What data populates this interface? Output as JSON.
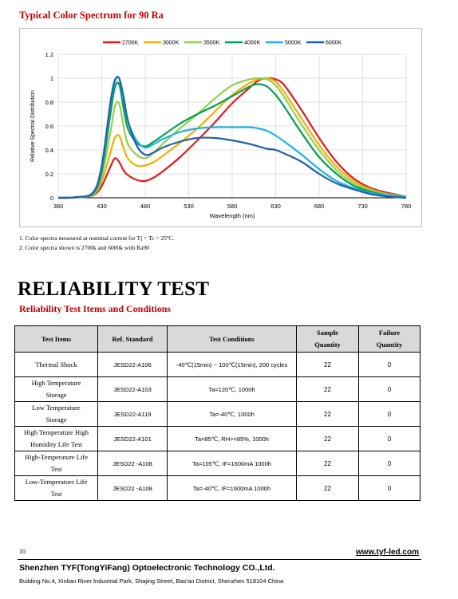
{
  "spectrum_title": "Typical Color Spectrum for 90 Ra",
  "chart_data": {
    "type": "line",
    "xlabel": "Wavelength (nm)",
    "ylabel": "Relative Spectral Distribution",
    "xlim": [
      380,
      780
    ],
    "ylim": [
      0,
      1.2
    ],
    "x_ticks": [
      380,
      430,
      480,
      530,
      580,
      630,
      680,
      730,
      780
    ],
    "y_ticks": [
      0,
      0.2,
      0.4,
      0.6,
      0.8,
      1,
      1.2
    ],
    "y_tick_labels": [
      "0",
      "0.2",
      "0.4",
      "0.6",
      "0.8",
      "1",
      "1.2"
    ],
    "grid": true,
    "legend_position": "top",
    "x": [
      380,
      400,
      420,
      430,
      440,
      445,
      450,
      455,
      460,
      470,
      480,
      490,
      500,
      520,
      540,
      560,
      580,
      600,
      610,
      620,
      630,
      640,
      660,
      680,
      700,
      720,
      740,
      760,
      780
    ],
    "series": [
      {
        "name": "2700K",
        "color": "#e31a1c",
        "values": [
          0,
          0.002,
          0.02,
          0.1,
          0.26,
          0.33,
          0.3,
          0.23,
          0.19,
          0.15,
          0.14,
          0.17,
          0.22,
          0.34,
          0.48,
          0.63,
          0.79,
          0.92,
          0.98,
          1.0,
          0.99,
          0.94,
          0.73,
          0.5,
          0.3,
          0.16,
          0.08,
          0.04,
          0.01
        ]
      },
      {
        "name": "3000K",
        "color": "#f0b000",
        "values": [
          0,
          0.002,
          0.025,
          0.14,
          0.38,
          0.5,
          0.52,
          0.42,
          0.33,
          0.27,
          0.27,
          0.3,
          0.35,
          0.46,
          0.58,
          0.72,
          0.86,
          0.96,
          0.99,
          1.0,
          0.97,
          0.88,
          0.66,
          0.44,
          0.26,
          0.14,
          0.07,
          0.03,
          0.01
        ]
      },
      {
        "name": "3500K",
        "color": "#92d050",
        "values": [
          0,
          0.003,
          0.03,
          0.18,
          0.55,
          0.76,
          0.79,
          0.6,
          0.45,
          0.36,
          0.33,
          0.38,
          0.45,
          0.58,
          0.7,
          0.83,
          0.94,
          0.99,
          1.0,
          0.99,
          0.94,
          0.84,
          0.61,
          0.4,
          0.23,
          0.12,
          0.06,
          0.03,
          0.01
        ]
      },
      {
        "name": "4000K",
        "color": "#00a050",
        "values": [
          0,
          0.004,
          0.035,
          0.22,
          0.7,
          0.92,
          0.95,
          0.75,
          0.58,
          0.46,
          0.43,
          0.47,
          0.52,
          0.62,
          0.7,
          0.77,
          0.85,
          0.93,
          0.95,
          0.93,
          0.86,
          0.76,
          0.54,
          0.34,
          0.2,
          0.1,
          0.05,
          0.02,
          0.01
        ]
      },
      {
        "name": "5000K",
        "color": "#1ab2e8",
        "values": [
          0,
          0.005,
          0.04,
          0.25,
          0.78,
          0.97,
          1.0,
          0.82,
          0.64,
          0.48,
          0.42,
          0.45,
          0.49,
          0.55,
          0.58,
          0.59,
          0.59,
          0.59,
          0.58,
          0.56,
          0.52,
          0.47,
          0.36,
          0.24,
          0.14,
          0.08,
          0.04,
          0.02,
          0.01
        ]
      },
      {
        "name": "6000K",
        "color": "#2160a8",
        "values": [
          0,
          0.005,
          0.045,
          0.27,
          0.8,
          0.98,
          1.0,
          0.85,
          0.65,
          0.44,
          0.36,
          0.38,
          0.42,
          0.47,
          0.5,
          0.5,
          0.48,
          0.45,
          0.43,
          0.41,
          0.4,
          0.37,
          0.3,
          0.2,
          0.12,
          0.07,
          0.03,
          0.01,
          0.0
        ]
      }
    ]
  },
  "notes": [
    "1.   Color spectra measured at nominal current for Tj = Tc = 25ºC.",
    "2.   Color spectra shown is 2700k and 6000k with Ra90"
  ],
  "reliability": {
    "title": "RELIABILITY TEST",
    "subtitle": "Reliability Test Items and Conditions",
    "headers": {
      "items": "Test Items",
      "standard": "Ref. Standard",
      "conditions": "Test Conditions",
      "sample_line1": "Sample",
      "sample_line2": "Quantity",
      "failure_line1": "Failure",
      "failure_line2": "Quantity"
    },
    "rows": [
      {
        "item1": "Thermal Shock",
        "item2": "",
        "standard": "JESD22-A106",
        "conditions": "-40℃(15min) ~ 100℃(15min), 200 cycles",
        "sample": "22",
        "failure": "0"
      },
      {
        "item1": "High Temperature",
        "item2": "Storage",
        "standard": "JESD22-A103",
        "conditions": "Ta=120℃, 1000h",
        "sample": "22",
        "failure": "0"
      },
      {
        "item1": "Low Temperature",
        "item2": "Storage",
        "standard": "JESD22-A119",
        "conditions": "Ta=-40℃, 1000h",
        "sample": "22",
        "failure": "0"
      },
      {
        "item1": "High Temperature High",
        "item2": "Humidity Life Test",
        "standard": "JESD22-A101",
        "conditions": "Ta=85℃, RH>=85%, 1000h",
        "sample": "22",
        "failure": "0"
      },
      {
        "item1": "High-Temperature Life",
        "item2": "Test",
        "standard": "JESD22 -A108",
        "conditions": "Ta=105℃, IF=1600mA 1000h",
        "sample": "22",
        "failure": "0"
      },
      {
        "item1": "Low-Temperature Life",
        "item2": "Test",
        "standard": "JESD22 -A108",
        "conditions": "Ta=-40℃, IF=1600mA 1000h",
        "sample": "22",
        "failure": "0"
      }
    ]
  },
  "footer": {
    "page_number": "10",
    "website": "www.tyf-led.com",
    "company": "Shenzhen TYF(TongYiFang) Optoelectronic Technology CO.,Ltd.",
    "address": "Building No.4, Xinlian River Industrial Park, Shajing Street, Bao'an District, Shenzhen 518104 China"
  }
}
